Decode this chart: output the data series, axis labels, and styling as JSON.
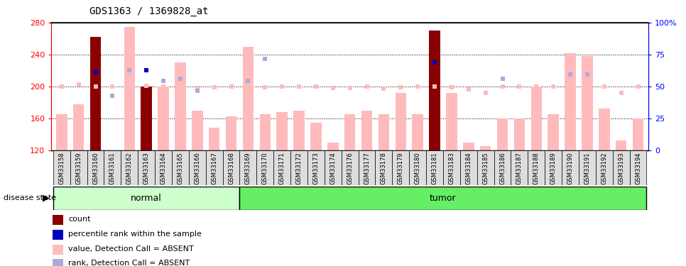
{
  "title": "GDS1363 / 1369828_at",
  "samples": [
    "GSM33158",
    "GSM33159",
    "GSM33160",
    "GSM33161",
    "GSM33162",
    "GSM33163",
    "GSM33164",
    "GSM33165",
    "GSM33166",
    "GSM33167",
    "GSM33168",
    "GSM33169",
    "GSM33170",
    "GSM33171",
    "GSM33172",
    "GSM33173",
    "GSM33174",
    "GSM33176",
    "GSM33177",
    "GSM33178",
    "GSM33179",
    "GSM33180",
    "GSM33181",
    "GSM33183",
    "GSM33184",
    "GSM33185",
    "GSM33186",
    "GSM33187",
    "GSM33188",
    "GSM33189",
    "GSM33190",
    "GSM33191",
    "GSM33192",
    "GSM33193",
    "GSM33194"
  ],
  "bar_values": [
    165,
    178,
    262,
    120,
    275,
    200,
    200,
    230,
    170,
    148,
    163,
    250,
    165,
    168,
    170,
    155,
    130,
    165,
    170,
    165,
    192,
    165,
    270,
    192,
    130,
    125,
    160,
    160,
    200,
    165,
    242,
    238,
    172,
    132,
    160
  ],
  "bar_is_dark": [
    false,
    false,
    true,
    true,
    false,
    true,
    false,
    false,
    false,
    false,
    false,
    false,
    false,
    false,
    false,
    false,
    false,
    false,
    false,
    false,
    false,
    false,
    true,
    false,
    false,
    false,
    false,
    false,
    false,
    false,
    false,
    false,
    false,
    false,
    false
  ],
  "scatter_value": [
    200,
    203,
    200,
    200,
    200,
    201,
    200,
    200,
    198,
    199,
    200,
    200,
    199,
    200,
    200,
    200,
    198,
    198,
    200,
    197,
    199,
    200,
    200,
    199,
    196,
    192,
    200,
    200,
    200,
    200,
    202,
    205,
    200,
    192,
    200
  ],
  "scatter_rank_y": [
    null,
    null,
    218,
    188,
    220,
    220,
    207,
    210,
    195,
    null,
    null,
    207,
    235,
    null,
    null,
    null,
    null,
    null,
    null,
    null,
    null,
    null,
    230,
    null,
    null,
    null,
    210,
    null,
    null,
    null,
    215,
    215,
    null,
    null,
    null
  ],
  "blue_dot_positions": [
    {
      "idx": 2,
      "yval": 218
    },
    {
      "idx": 5,
      "yval": 220
    },
    {
      "idx": 22,
      "yval": 230
    }
  ],
  "disease_state": [
    "normal",
    "normal",
    "normal",
    "normal",
    "normal",
    "normal",
    "normal",
    "normal",
    "normal",
    "normal",
    "normal",
    "tumor",
    "tumor",
    "tumor",
    "tumor",
    "tumor",
    "tumor",
    "tumor",
    "tumor",
    "tumor",
    "tumor",
    "tumor",
    "tumor",
    "tumor",
    "tumor",
    "tumor",
    "tumor",
    "tumor",
    "tumor",
    "tumor",
    "tumor",
    "tumor",
    "tumor",
    "tumor",
    "tumor"
  ],
  "ymin": 120,
  "ymax": 280,
  "yticks": [
    120,
    160,
    200,
    240,
    280
  ],
  "right_yticks_vals": [
    0,
    25,
    50,
    75,
    100
  ],
  "right_yticks_labels": [
    "0",
    "25",
    "50",
    "75",
    "100%"
  ],
  "bar_color_dark": "#8B0000",
  "bar_color_light": "#FFBBBB",
  "scatter_value_color": "#FFBBBB",
  "scatter_rank_color": "#AAAADD",
  "blue_dot_color": "#0000BB",
  "normal_fill": "#CCFFCC",
  "tumor_fill": "#66EE66",
  "legend_items": [
    {
      "color": "#8B0000",
      "label": "count"
    },
    {
      "color": "#0000BB",
      "label": "percentile rank within the sample"
    },
    {
      "color": "#FFBBBB",
      "label": "value, Detection Call = ABSENT"
    },
    {
      "color": "#AAAADD",
      "label": "rank, Detection Call = ABSENT"
    }
  ]
}
